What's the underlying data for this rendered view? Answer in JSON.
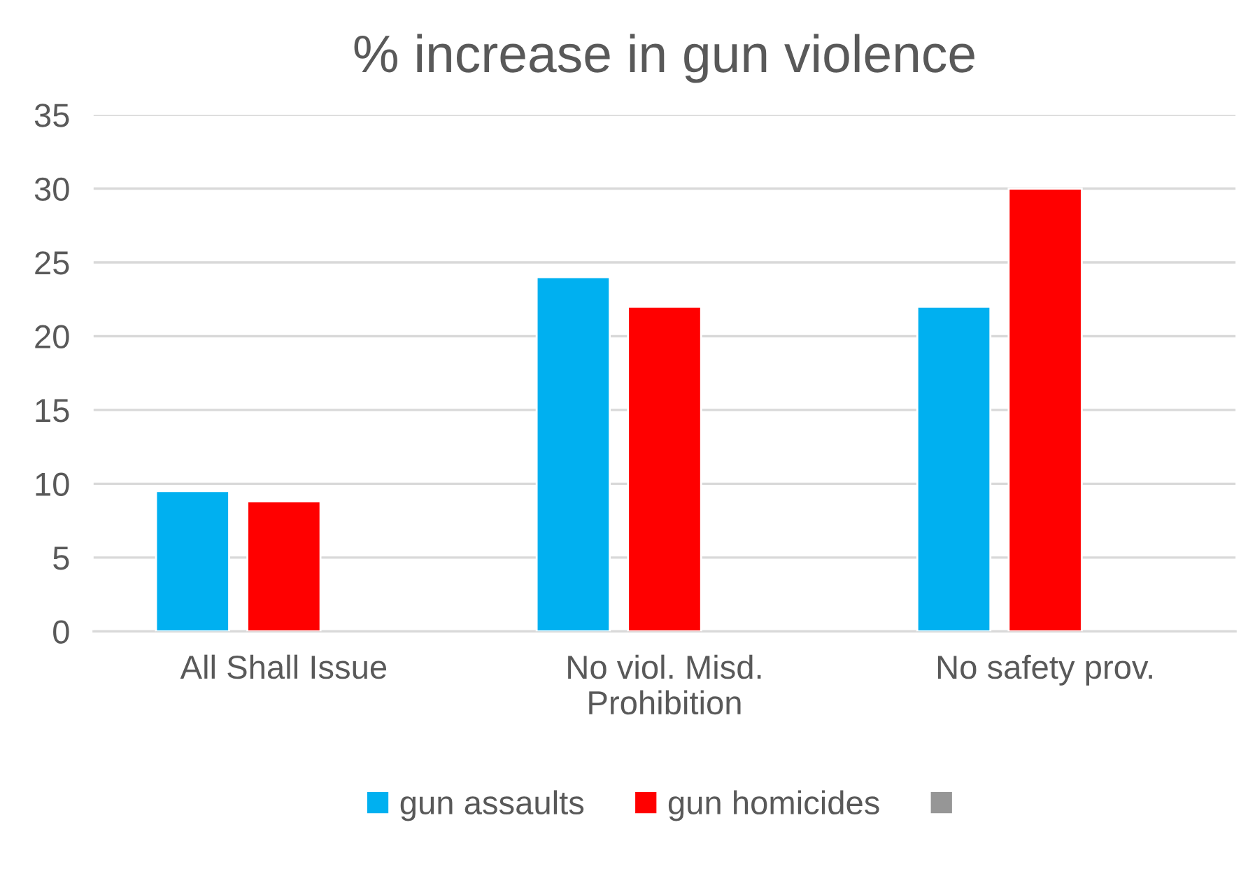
{
  "chart_data": {
    "type": "bar",
    "title": "% increase in gun violence",
    "categories": [
      "All Shall Issue",
      "No viol. Misd.\nProhibition",
      "No safety prov."
    ],
    "series": [
      {
        "name": "gun assaults",
        "color": "#00b0f0",
        "values": [
          9.5,
          24,
          22
        ]
      },
      {
        "name": "gun homicides",
        "color": "#ff0000",
        "values": [
          8.8,
          22,
          30
        ]
      },
      {
        "color": "#969696",
        "values": [
          null,
          null,
          null
        ]
      }
    ],
    "ylim": [
      0,
      35
    ],
    "yticks": [
      0,
      5,
      10,
      15,
      20,
      25,
      30,
      35
    ],
    "grid": "y",
    "legend": "bottom"
  }
}
